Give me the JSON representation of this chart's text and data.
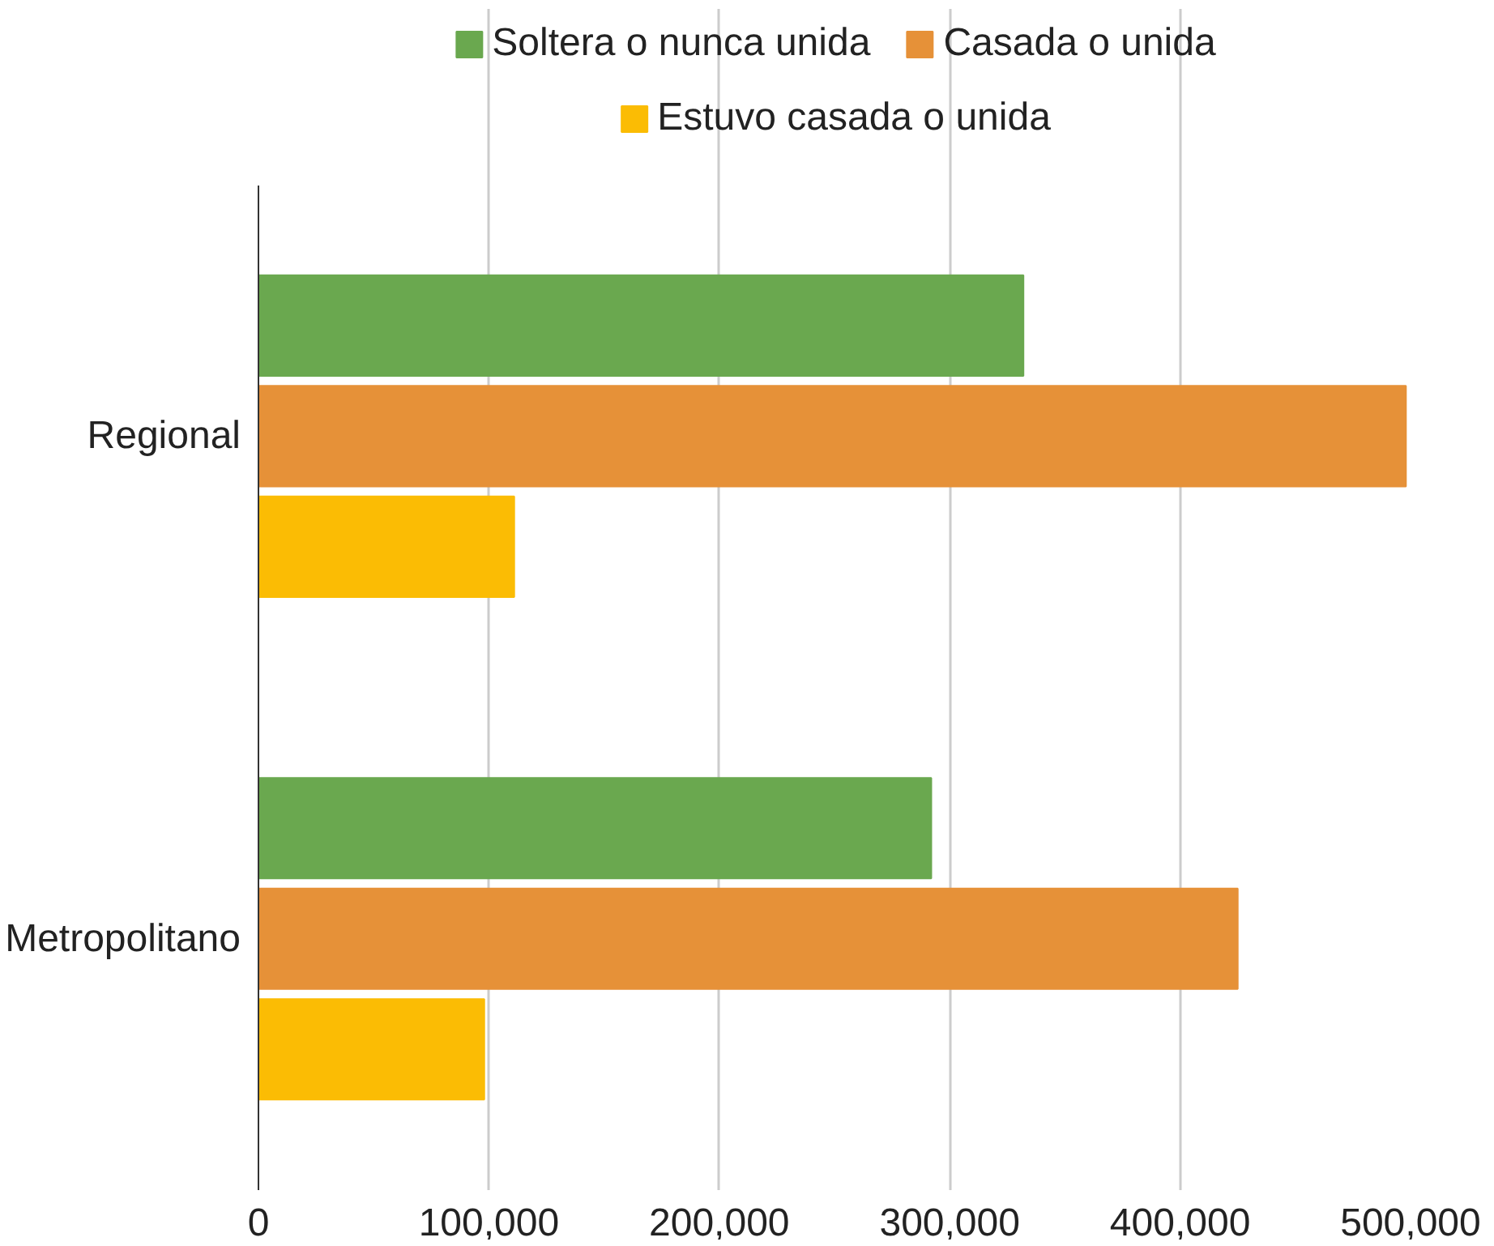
{
  "chart_data": {
    "type": "bar",
    "orientation": "horizontal",
    "categories": [
      "Regional",
      "Metropolitano"
    ],
    "series": [
      {
        "name": "Soltera o nunca unida",
        "color": "#6aa84f",
        "values": [
          332000,
          292000
        ]
      },
      {
        "name": "Casada o unida",
        "color": "#e69138",
        "values": [
          498000,
          425000
        ]
      },
      {
        "name": "Estuvo casada o unida",
        "color": "#fbbc04",
        "values": [
          111000,
          98000
        ]
      }
    ],
    "xlim": [
      0,
      500000
    ],
    "xticks": [
      {
        "value": 0,
        "label": "0"
      },
      {
        "value": 100000,
        "label": "100,000"
      },
      {
        "value": 200000,
        "label": "200,000"
      },
      {
        "value": 300000,
        "label": "300,000"
      },
      {
        "value": 400000,
        "label": "400,000"
      },
      {
        "value": 500000,
        "label": "500,000"
      }
    ],
    "grid": "x",
    "legend": "top"
  }
}
